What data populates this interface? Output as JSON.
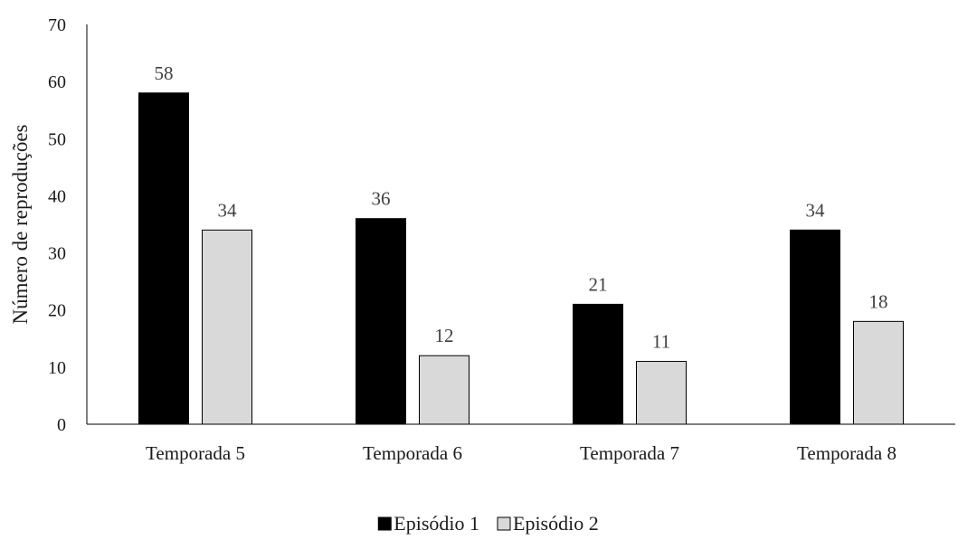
{
  "chart_data": {
    "type": "bar",
    "categories": [
      "Temporada 5",
      "Temporada 6",
      "Temporada 7",
      "Temporada 8"
    ],
    "series": [
      {
        "name": "Episódio 1",
        "values": [
          58,
          36,
          21,
          34
        ],
        "color": "#000000"
      },
      {
        "name": "Episódio 2",
        "values": [
          34,
          12,
          11,
          18
        ],
        "color": "#d9d9d9"
      }
    ],
    "yticks": [
      "0",
      "10",
      "20",
      "30",
      "40",
      "50",
      "60",
      "70"
    ],
    "ylabel": "Número de reproduções",
    "xlabel": "",
    "ylim": [
      0,
      70
    ],
    "grid": false,
    "legend": "bottom"
  }
}
